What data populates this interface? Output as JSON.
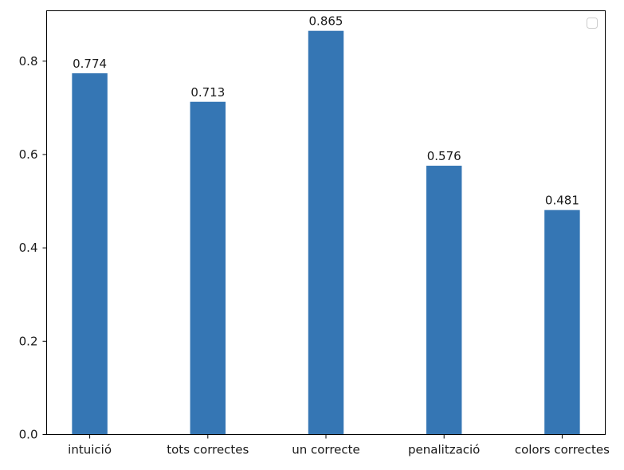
{
  "chart_data": {
    "type": "bar",
    "categories": [
      "intuició",
      "tots correctes",
      "un correcte",
      "penalització",
      "colors correctes"
    ],
    "values": [
      0.774,
      0.713,
      0.865,
      0.576,
      0.481
    ],
    "value_labels": [
      "0.774",
      "0.713",
      "0.865",
      "0.576",
      "0.481"
    ],
    "ylim": [
      0,
      0.908
    ],
    "yticks": [
      0.0,
      0.2,
      0.4,
      0.6,
      0.8
    ],
    "ytick_labels": [
      "0.0",
      "0.2",
      "0.4",
      "0.6",
      "0.8"
    ],
    "bar_color": "#3576b4",
    "bar_width_fraction": 0.3,
    "grid": false,
    "legend": {
      "placement": "top-right",
      "entries": []
    },
    "title": "",
    "xlabel": "",
    "ylabel": ""
  }
}
